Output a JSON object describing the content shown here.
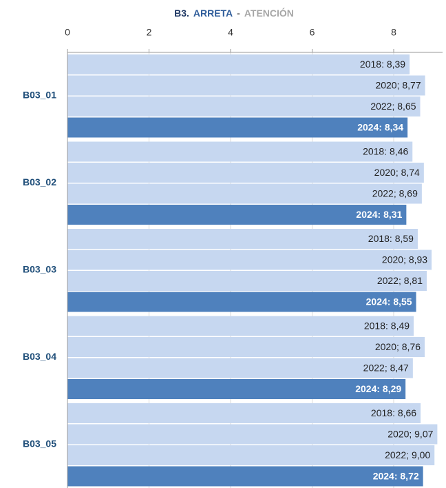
{
  "chart_data": {
    "type": "hbar",
    "title": [
      "B3.",
      "ARRETA",
      "-",
      "ATENCIÓN"
    ],
    "title_colors": [
      "#1f3864",
      "#2e5c9a",
      "#666666",
      "#a6a6a6"
    ],
    "categories": [
      "B03_01",
      "B03_02",
      "B03_03",
      "B03_04",
      "B03_05"
    ],
    "series": [
      {
        "color": "#c6d7f0",
        "values": [
          8.39,
          8.46,
          8.59,
          8.49,
          8.66
        ],
        "value_labels": [
          "2018: 8,39",
          "2018: 8,46",
          "2018: 8,59",
          "2018: 8,49",
          "2018: 8,66"
        ]
      },
      {
        "color": "#c6d7f0",
        "values": [
          8.77,
          8.74,
          8.93,
          8.76,
          9.07
        ],
        "value_labels": [
          "2020; 8,77",
          "2020; 8,74",
          "2020; 8,93",
          "2020; 8,76",
          "2020; 9,07"
        ]
      },
      {
        "color": "#c6d7f0",
        "values": [
          8.65,
          8.69,
          8.81,
          8.47,
          9.0
        ],
        "value_labels": [
          "2022; 8,65",
          "2022; 8,69",
          "2022; 8,81",
          "2022; 8,47",
          "2022; 9,00"
        ]
      },
      {
        "color": "#4f81bd",
        "values": [
          8.34,
          8.31,
          8.55,
          8.29,
          8.72
        ],
        "value_labels": [
          "2024: 8,34",
          "2024: 8,31",
          "2024: 8,55",
          "2024: 8,29",
          "2024: 8,72"
        ]
      }
    ],
    "xlim": [
      0,
      9.2
    ],
    "xticks": [
      0,
      2,
      4,
      6,
      8
    ],
    "grid": true
  }
}
